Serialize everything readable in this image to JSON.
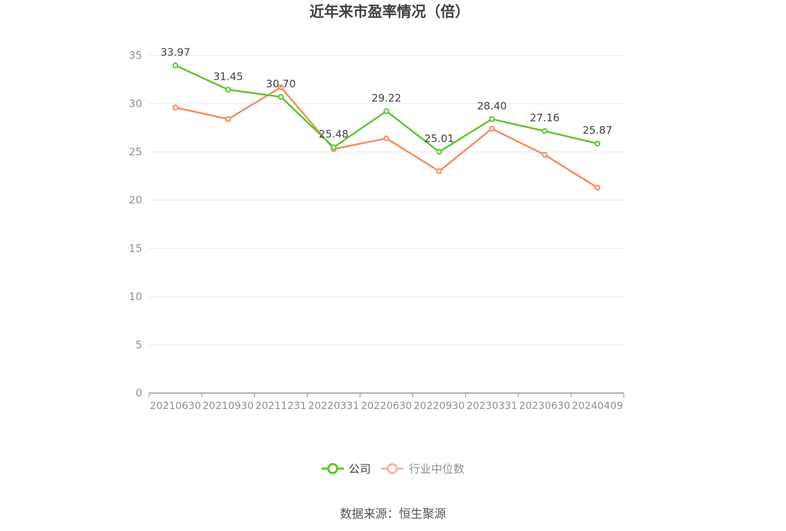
{
  "chart_data": {
    "type": "line",
    "title": "近年来市盈率情况（倍）",
    "categories": [
      "20210630",
      "20210930",
      "20211231",
      "20220331",
      "20220630",
      "20220930",
      "20230331",
      "20230630",
      "20240409"
    ],
    "series": [
      {
        "name": "公司",
        "color": "#5ac52d",
        "values": [
          33.97,
          31.45,
          30.7,
          25.48,
          29.22,
          25.01,
          28.4,
          27.16,
          25.87
        ],
        "data_labels": [
          "33.97",
          "31.45",
          "30.70",
          "25.48",
          "29.22",
          "25.01",
          "28.40",
          "27.16",
          "25.87"
        ]
      },
      {
        "name": "行业中位数",
        "color": "#f28b5c",
        "values": [
          29.6,
          28.4,
          31.7,
          25.3,
          26.4,
          23.0,
          27.4,
          24.7,
          21.3
        ]
      }
    ],
    "ylim": [
      0,
      35
    ],
    "yticks": [
      0,
      5,
      10,
      15,
      20,
      25,
      30,
      35
    ],
    "ytick_labels": [
      "0",
      "5",
      "10",
      "15",
      "20",
      "25",
      "30",
      "35"
    ],
    "grid": true,
    "legend_position": "bottom-center",
    "xlabel": "",
    "ylabel": ""
  },
  "legend": {
    "company_label": "公司",
    "company_color": "#5ac52d",
    "industry_label": "行业中位数",
    "industry_color": "#f9b59a"
  },
  "source": "数据来源：恒生聚源"
}
